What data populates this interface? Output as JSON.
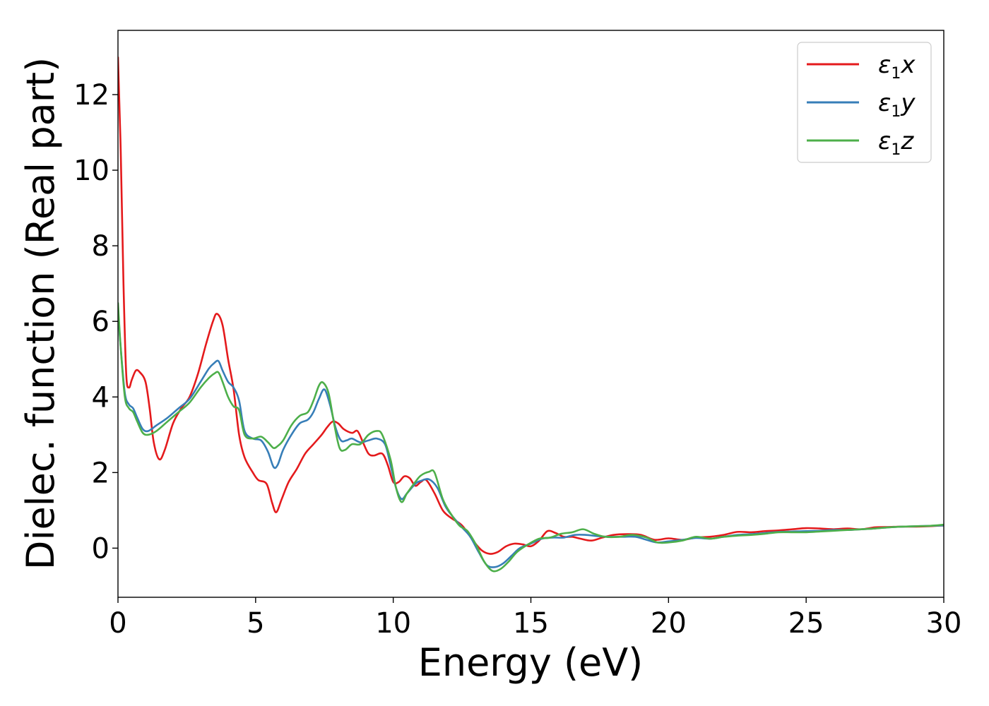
{
  "chart_data": {
    "type": "line",
    "xlabel": "Energy (eV)",
    "ylabel": "Dielec. function (Real part)",
    "xlim": [
      0,
      30
    ],
    "ylim": [
      -1.3,
      13.7
    ],
    "xticks": [
      0,
      5,
      10,
      15,
      20,
      25,
      30
    ],
    "yticks": [
      0,
      2,
      4,
      6,
      8,
      10,
      12
    ],
    "grid": false,
    "legend_position": "top-right",
    "series": [
      {
        "name": "ε1x",
        "legend_symbol": "ε",
        "legend_sub": "1",
        "legend_var": "x",
        "color": "#e41a1c",
        "points": [
          [
            0,
            13.0
          ],
          [
            0.1,
            10.5
          ],
          [
            0.2,
            7.0
          ],
          [
            0.3,
            4.6
          ],
          [
            0.4,
            4.25
          ],
          [
            0.5,
            4.45
          ],
          [
            0.65,
            4.7
          ],
          [
            0.8,
            4.65
          ],
          [
            1.0,
            4.4
          ],
          [
            1.15,
            3.7
          ],
          [
            1.3,
            2.8
          ],
          [
            1.5,
            2.35
          ],
          [
            1.7,
            2.6
          ],
          [
            2.0,
            3.3
          ],
          [
            2.3,
            3.7
          ],
          [
            2.6,
            4.0
          ],
          [
            2.9,
            4.6
          ],
          [
            3.2,
            5.4
          ],
          [
            3.45,
            6.0
          ],
          [
            3.6,
            6.2
          ],
          [
            3.8,
            5.9
          ],
          [
            4.0,
            5.0
          ],
          [
            4.2,
            4.2
          ],
          [
            4.4,
            3.0
          ],
          [
            4.6,
            2.4
          ],
          [
            4.9,
            2.0
          ],
          [
            5.1,
            1.8
          ],
          [
            5.4,
            1.7
          ],
          [
            5.6,
            1.2
          ],
          [
            5.75,
            0.95
          ],
          [
            5.95,
            1.3
          ],
          [
            6.2,
            1.75
          ],
          [
            6.5,
            2.1
          ],
          [
            6.8,
            2.5
          ],
          [
            7.1,
            2.75
          ],
          [
            7.4,
            3.0
          ],
          [
            7.6,
            3.2
          ],
          [
            7.8,
            3.35
          ],
          [
            8.0,
            3.3
          ],
          [
            8.2,
            3.15
          ],
          [
            8.5,
            3.05
          ],
          [
            8.7,
            3.1
          ],
          [
            8.9,
            2.8
          ],
          [
            9.1,
            2.5
          ],
          [
            9.3,
            2.45
          ],
          [
            9.6,
            2.5
          ],
          [
            9.8,
            2.2
          ],
          [
            10.0,
            1.75
          ],
          [
            10.2,
            1.75
          ],
          [
            10.4,
            1.9
          ],
          [
            10.6,
            1.85
          ],
          [
            10.8,
            1.65
          ],
          [
            11.0,
            1.75
          ],
          [
            11.2,
            1.8
          ],
          [
            11.5,
            1.45
          ],
          [
            11.8,
            1.0
          ],
          [
            12.1,
            0.8
          ],
          [
            12.5,
            0.6
          ],
          [
            12.9,
            0.2
          ],
          [
            13.2,
            -0.05
          ],
          [
            13.5,
            -0.15
          ],
          [
            13.8,
            -0.1
          ],
          [
            14.1,
            0.05
          ],
          [
            14.4,
            0.12
          ],
          [
            14.7,
            0.1
          ],
          [
            15.0,
            0.05
          ],
          [
            15.3,
            0.2
          ],
          [
            15.6,
            0.45
          ],
          [
            15.9,
            0.4
          ],
          [
            16.2,
            0.3
          ],
          [
            16.5,
            0.3
          ],
          [
            16.8,
            0.25
          ],
          [
            17.2,
            0.2
          ],
          [
            17.6,
            0.28
          ],
          [
            18.0,
            0.35
          ],
          [
            18.5,
            0.37
          ],
          [
            19.0,
            0.35
          ],
          [
            19.5,
            0.22
          ],
          [
            20.0,
            0.26
          ],
          [
            20.5,
            0.22
          ],
          [
            21.0,
            0.28
          ],
          [
            21.5,
            0.3
          ],
          [
            22.0,
            0.35
          ],
          [
            22.5,
            0.43
          ],
          [
            23.0,
            0.42
          ],
          [
            23.5,
            0.45
          ],
          [
            24.0,
            0.47
          ],
          [
            24.5,
            0.5
          ],
          [
            25.0,
            0.53
          ],
          [
            25.5,
            0.52
          ],
          [
            26.0,
            0.5
          ],
          [
            26.5,
            0.52
          ],
          [
            27.0,
            0.5
          ],
          [
            27.5,
            0.55
          ],
          [
            28.0,
            0.56
          ],
          [
            28.5,
            0.57
          ],
          [
            29.0,
            0.57
          ],
          [
            29.5,
            0.58
          ],
          [
            30.0,
            0.6
          ]
        ]
      },
      {
        "name": "ε1y",
        "legend_symbol": "ε",
        "legend_sub": "1",
        "legend_var": "y",
        "color": "#377eb8",
        "points": [
          [
            0,
            6.3
          ],
          [
            0.1,
            5.3
          ],
          [
            0.25,
            4.1
          ],
          [
            0.4,
            3.8
          ],
          [
            0.55,
            3.7
          ],
          [
            0.7,
            3.45
          ],
          [
            0.9,
            3.15
          ],
          [
            1.1,
            3.1
          ],
          [
            1.4,
            3.25
          ],
          [
            1.8,
            3.45
          ],
          [
            2.2,
            3.7
          ],
          [
            2.6,
            3.95
          ],
          [
            3.0,
            4.4
          ],
          [
            3.3,
            4.75
          ],
          [
            3.5,
            4.9
          ],
          [
            3.65,
            4.95
          ],
          [
            3.8,
            4.7
          ],
          [
            4.0,
            4.4
          ],
          [
            4.2,
            4.25
          ],
          [
            4.4,
            3.9
          ],
          [
            4.6,
            3.1
          ],
          [
            4.9,
            2.9
          ],
          [
            5.2,
            2.85
          ],
          [
            5.45,
            2.55
          ],
          [
            5.65,
            2.15
          ],
          [
            5.8,
            2.2
          ],
          [
            6.0,
            2.6
          ],
          [
            6.3,
            3.0
          ],
          [
            6.6,
            3.3
          ],
          [
            6.9,
            3.4
          ],
          [
            7.1,
            3.6
          ],
          [
            7.3,
            3.95
          ],
          [
            7.5,
            4.2
          ],
          [
            7.7,
            3.8
          ],
          [
            7.9,
            3.2
          ],
          [
            8.1,
            2.85
          ],
          [
            8.3,
            2.85
          ],
          [
            8.5,
            2.9
          ],
          [
            8.8,
            2.8
          ],
          [
            9.1,
            2.85
          ],
          [
            9.4,
            2.9
          ],
          [
            9.7,
            2.75
          ],
          [
            9.9,
            2.2
          ],
          [
            10.1,
            1.6
          ],
          [
            10.3,
            1.3
          ],
          [
            10.5,
            1.45
          ],
          [
            10.8,
            1.7
          ],
          [
            11.0,
            1.78
          ],
          [
            11.3,
            1.82
          ],
          [
            11.6,
            1.6
          ],
          [
            11.9,
            1.1
          ],
          [
            12.2,
            0.8
          ],
          [
            12.5,
            0.55
          ],
          [
            12.8,
            0.3
          ],
          [
            13.1,
            -0.1
          ],
          [
            13.4,
            -0.45
          ],
          [
            13.7,
            -0.5
          ],
          [
            14.0,
            -0.4
          ],
          [
            14.3,
            -0.2
          ],
          [
            14.6,
            0.0
          ],
          [
            15.0,
            0.12
          ],
          [
            15.4,
            0.25
          ],
          [
            15.8,
            0.28
          ],
          [
            16.2,
            0.28
          ],
          [
            16.6,
            0.35
          ],
          [
            17.0,
            0.35
          ],
          [
            17.4,
            0.32
          ],
          [
            17.8,
            0.3
          ],
          [
            18.3,
            0.3
          ],
          [
            18.8,
            0.3
          ],
          [
            19.2,
            0.22
          ],
          [
            19.6,
            0.15
          ],
          [
            20.0,
            0.18
          ],
          [
            20.5,
            0.22
          ],
          [
            21.0,
            0.27
          ],
          [
            21.5,
            0.25
          ],
          [
            22.0,
            0.3
          ],
          [
            22.5,
            0.35
          ],
          [
            23.0,
            0.37
          ],
          [
            23.5,
            0.4
          ],
          [
            24.0,
            0.43
          ],
          [
            24.5,
            0.44
          ],
          [
            25.0,
            0.45
          ],
          [
            25.5,
            0.46
          ],
          [
            26.0,
            0.48
          ],
          [
            26.5,
            0.48
          ],
          [
            27.0,
            0.5
          ],
          [
            27.5,
            0.52
          ],
          [
            28.0,
            0.55
          ],
          [
            28.5,
            0.57
          ],
          [
            29.0,
            0.58
          ],
          [
            29.5,
            0.59
          ],
          [
            30.0,
            0.6
          ]
        ]
      },
      {
        "name": "ε1z",
        "legend_symbol": "ε",
        "legend_sub": "1",
        "legend_var": "z",
        "color": "#4daf4a",
        "points": [
          [
            0,
            6.5
          ],
          [
            0.1,
            5.3
          ],
          [
            0.25,
            4.0
          ],
          [
            0.4,
            3.7
          ],
          [
            0.55,
            3.6
          ],
          [
            0.7,
            3.35
          ],
          [
            0.9,
            3.05
          ],
          [
            1.1,
            3.0
          ],
          [
            1.4,
            3.1
          ],
          [
            1.8,
            3.35
          ],
          [
            2.2,
            3.6
          ],
          [
            2.6,
            3.85
          ],
          [
            3.0,
            4.25
          ],
          [
            3.3,
            4.5
          ],
          [
            3.5,
            4.62
          ],
          [
            3.65,
            4.65
          ],
          [
            3.8,
            4.4
          ],
          [
            4.0,
            4.0
          ],
          [
            4.2,
            3.75
          ],
          [
            4.4,
            3.65
          ],
          [
            4.6,
            3.0
          ],
          [
            4.9,
            2.9
          ],
          [
            5.2,
            2.95
          ],
          [
            5.45,
            2.8
          ],
          [
            5.65,
            2.65
          ],
          [
            5.8,
            2.7
          ],
          [
            6.0,
            2.85
          ],
          [
            6.3,
            3.25
          ],
          [
            6.6,
            3.5
          ],
          [
            6.9,
            3.6
          ],
          [
            7.1,
            3.9
          ],
          [
            7.3,
            4.3
          ],
          [
            7.45,
            4.38
          ],
          [
            7.65,
            4.1
          ],
          [
            7.85,
            3.3
          ],
          [
            8.05,
            2.65
          ],
          [
            8.25,
            2.6
          ],
          [
            8.5,
            2.75
          ],
          [
            8.8,
            2.75
          ],
          [
            9.1,
            3.0
          ],
          [
            9.4,
            3.1
          ],
          [
            9.6,
            3.0
          ],
          [
            9.9,
            2.35
          ],
          [
            10.1,
            1.6
          ],
          [
            10.3,
            1.22
          ],
          [
            10.5,
            1.45
          ],
          [
            10.8,
            1.75
          ],
          [
            11.0,
            1.92
          ],
          [
            11.3,
            2.02
          ],
          [
            11.5,
            2.0
          ],
          [
            11.8,
            1.3
          ],
          [
            12.1,
            0.9
          ],
          [
            12.4,
            0.6
          ],
          [
            12.7,
            0.45
          ],
          [
            13.0,
            0.1
          ],
          [
            13.3,
            -0.35
          ],
          [
            13.6,
            -0.6
          ],
          [
            13.9,
            -0.55
          ],
          [
            14.2,
            -0.35
          ],
          [
            14.5,
            -0.1
          ],
          [
            14.9,
            0.1
          ],
          [
            15.3,
            0.25
          ],
          [
            15.7,
            0.28
          ],
          [
            16.1,
            0.38
          ],
          [
            16.5,
            0.42
          ],
          [
            16.9,
            0.5
          ],
          [
            17.3,
            0.38
          ],
          [
            17.7,
            0.3
          ],
          [
            18.2,
            0.3
          ],
          [
            18.7,
            0.35
          ],
          [
            19.2,
            0.28
          ],
          [
            19.6,
            0.15
          ],
          [
            20.0,
            0.15
          ],
          [
            20.5,
            0.2
          ],
          [
            21.0,
            0.3
          ],
          [
            21.5,
            0.25
          ],
          [
            22.0,
            0.3
          ],
          [
            22.5,
            0.33
          ],
          [
            23.0,
            0.35
          ],
          [
            23.5,
            0.38
          ],
          [
            24.0,
            0.42
          ],
          [
            24.5,
            0.42
          ],
          [
            25.0,
            0.42
          ],
          [
            25.5,
            0.44
          ],
          [
            26.0,
            0.46
          ],
          [
            26.5,
            0.48
          ],
          [
            27.0,
            0.5
          ],
          [
            27.5,
            0.52
          ],
          [
            28.0,
            0.55
          ],
          [
            28.5,
            0.57
          ],
          [
            29.0,
            0.58
          ],
          [
            29.5,
            0.59
          ],
          [
            30.0,
            0.62
          ]
        ]
      }
    ]
  }
}
